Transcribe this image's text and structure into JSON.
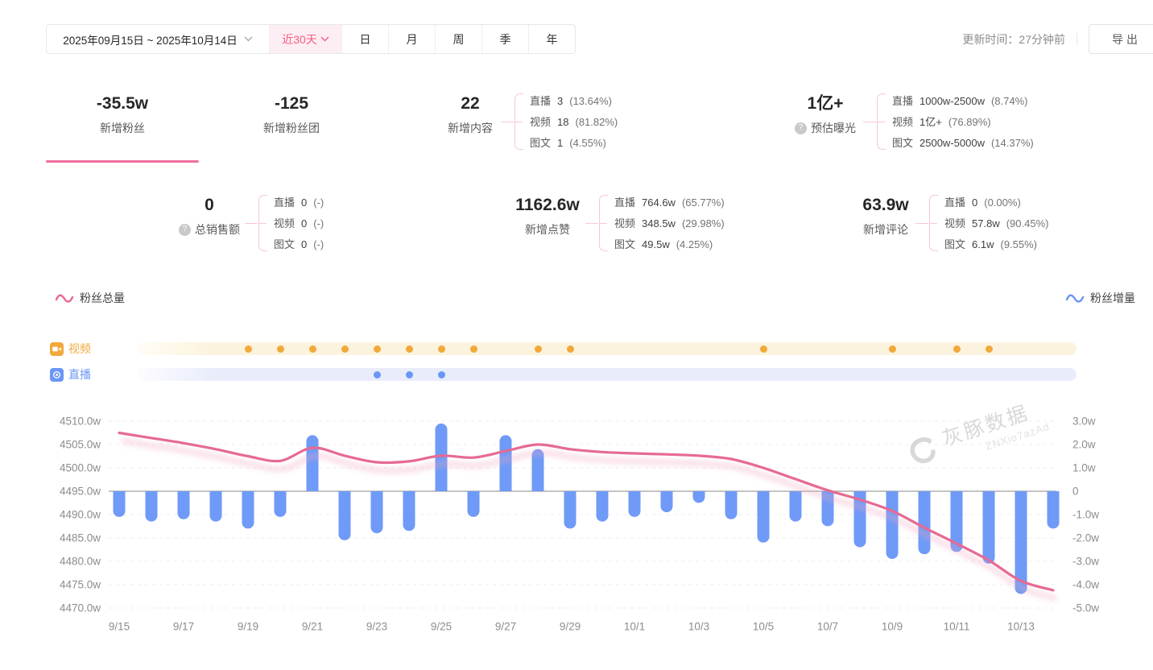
{
  "header": {
    "date_range": "2025年09月15日 ~ 2025年10月14日",
    "quick_range": "近30天",
    "period_tabs": [
      "日",
      "月",
      "周",
      "季",
      "年"
    ],
    "updated_label": "更新时间：27分钟前",
    "export_label": "导出"
  },
  "stats": {
    "row1": [
      {
        "value": "-35.5w",
        "label": "新增粉丝",
        "selected": true
      },
      {
        "value": "-125",
        "label": "新增粉丝团",
        "selected": false
      },
      {
        "value": "22",
        "label": "新增内容",
        "breakdown": [
          [
            "直播",
            "3",
            "(13.64%)"
          ],
          [
            "视频",
            "18",
            "(81.82%)"
          ],
          [
            "图文",
            "1",
            "(4.55%)"
          ]
        ]
      },
      {
        "value": "1亿+",
        "label": "预估曝光",
        "help": true,
        "breakdown": [
          [
            "直播",
            "1000w-2500w",
            "(8.74%)"
          ],
          [
            "视频",
            "1亿+",
            "(76.89%)"
          ],
          [
            "图文",
            "2500w-5000w",
            "(14.37%)"
          ]
        ]
      }
    ],
    "row2": [
      {
        "value": "0",
        "label": "总销售额",
        "help": true,
        "breakdown": [
          [
            "直播",
            "0",
            "(-)"
          ],
          [
            "视频",
            "0",
            "(-)"
          ],
          [
            "图文",
            "0",
            "(-)"
          ]
        ]
      },
      {
        "value": "1162.6w",
        "label": "新增点赞",
        "breakdown": [
          [
            "直播",
            "764.6w",
            "(65.77%)"
          ],
          [
            "视频",
            "348.5w",
            "(29.98%)"
          ],
          [
            "图文",
            "49.5w",
            "(4.25%)"
          ]
        ]
      },
      {
        "value": "63.9w",
        "label": "新增评论",
        "breakdown": [
          [
            "直播",
            "0",
            "(0.00%)"
          ],
          [
            "视频",
            "57.8w",
            "(90.45%)"
          ],
          [
            "图文",
            "6.1w",
            "(9.55%)"
          ]
        ]
      }
    ]
  },
  "legend": {
    "left": "粉丝总量",
    "right": "粉丝增量"
  },
  "timeline": {
    "video_label": "视频",
    "live_label": "直播",
    "video_color": "#f2a93b",
    "live_color": "#6a96f6",
    "video_days": [
      "9/19",
      "9/20",
      "9/21",
      "9/22",
      "9/23",
      "9/24",
      "9/25",
      "9/26",
      "9/28",
      "9/29",
      "10/5",
      "10/9",
      "10/11",
      "10/12"
    ],
    "live_days": [
      "9/23",
      "9/24",
      "9/25"
    ]
  },
  "chart_data": {
    "type": "line+bar",
    "x": [
      "9/15",
      "9/16",
      "9/17",
      "9/18",
      "9/19",
      "9/20",
      "9/21",
      "9/22",
      "9/23",
      "9/24",
      "9/25",
      "9/26",
      "9/27",
      "9/28",
      "9/29",
      "9/30",
      "10/1",
      "10/2",
      "10/3",
      "10/4",
      "10/5",
      "10/6",
      "10/7",
      "10/8",
      "10/9",
      "10/10",
      "10/11",
      "10/12",
      "10/13",
      "10/14"
    ],
    "x_tick_labels": [
      "9/15",
      "9/17",
      "9/19",
      "9/21",
      "9/23",
      "9/25",
      "9/27",
      "9/29",
      "10/1",
      "10/3",
      "10/5",
      "10/7",
      "10/9",
      "10/11",
      "10/13"
    ],
    "series": [
      {
        "name": "粉丝总量",
        "type": "line",
        "axis": "left",
        "color": "#e66a92",
        "values": [
          4507.5,
          4506.4,
          4505.3,
          4504.0,
          4502.5,
          4501.5,
          4504.3,
          4502.6,
          4501.2,
          4501.4,
          4502.6,
          4502.2,
          4503.6,
          4505.0,
          4504.0,
          4503.4,
          4503.1,
          4502.9,
          4502.6,
          4501.9,
          4500.0,
          4497.6,
          4495.2,
          4493.2,
          4490.8,
          4487.2,
          4483.8,
          4480.2,
          4475.8,
          4473.8
        ]
      },
      {
        "name": "粉丝增量",
        "type": "bar",
        "axis": "right",
        "color": "#6f9af7",
        "values": [
          -1.1,
          -1.3,
          -1.2,
          -1.3,
          -1.6,
          -1.1,
          2.4,
          -2.1,
          -1.8,
          -1.7,
          2.9,
          -1.1,
          2.4,
          1.8,
          -1.6,
          -1.3,
          -1.1,
          -0.9,
          -0.5,
          -1.2,
          -2.2,
          -1.3,
          -1.5,
          -2.4,
          -2.9,
          -2.7,
          -2.6,
          -3.1,
          -4.4,
          -1.6
        ]
      }
    ],
    "left_axis": {
      "ticks": [
        "4510.0w",
        "4505.0w",
        "4500.0w",
        "4495.0w",
        "4490.0w",
        "4485.0w",
        "4480.0w",
        "4475.0w",
        "4470.0w"
      ],
      "min": 4470,
      "max": 4510,
      "unit": "w"
    },
    "right_axis": {
      "ticks": [
        "3.0w",
        "2.0w",
        "1.0w",
        "0",
        "-1.0w",
        "-2.0w",
        "-3.0w",
        "-4.0w",
        "-5.0w"
      ],
      "min": -5,
      "max": 3,
      "unit": "w"
    },
    "baseline_left_value": 4495,
    "grid": "dashed",
    "watermark": {
      "brand": "灰豚数据",
      "code": "ZNXio7azAd"
    }
  }
}
